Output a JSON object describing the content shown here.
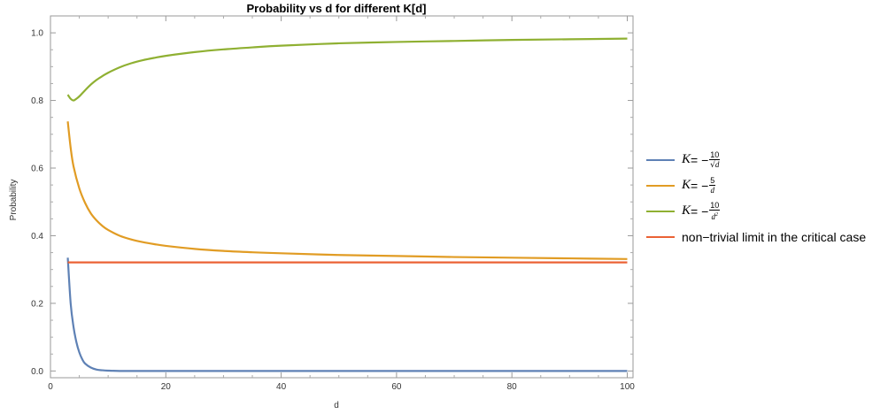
{
  "chart_data": {
    "type": "line",
    "title": "Probability vs d for different K[d]",
    "xlabel": "d",
    "ylabel": "Probability",
    "xlim": [
      0,
      101
    ],
    "ylim": [
      -0.02,
      1.05
    ],
    "xticks": [
      0,
      20,
      40,
      60,
      80,
      100
    ],
    "xtick_labels": [
      "0",
      "20",
      "40",
      "60",
      "80",
      "100"
    ],
    "yticks": [
      0.0,
      0.2,
      0.4,
      0.6,
      0.8,
      1.0
    ],
    "ytick_labels": [
      "0.0",
      "0.2",
      "0.4",
      "0.6",
      "0.8",
      "1.0"
    ],
    "grid": false,
    "legend_position": "right",
    "series": [
      {
        "name": "K = −10/√d",
        "color": "#5e81b5",
        "x": [
          3,
          3.5,
          4,
          4.5,
          5,
          5.5,
          6,
          7,
          8,
          9,
          10,
          12,
          15,
          20,
          30,
          40,
          50,
          60,
          70,
          80,
          90,
          100
        ],
        "y": [
          0.335,
          0.2,
          0.13,
          0.085,
          0.055,
          0.035,
          0.022,
          0.01,
          0.004,
          0.002,
          0.001,
          0.0,
          0.0,
          0.0,
          0.0,
          0.0,
          0.0,
          0.0,
          0.0,
          0.0,
          0.0,
          0.0
        ]
      },
      {
        "name": "K = −5/d",
        "color": "#e19c24",
        "x": [
          3,
          3.5,
          4,
          5,
          6,
          7,
          8,
          9,
          10,
          12,
          14,
          16,
          18,
          20,
          25,
          30,
          35,
          40,
          50,
          60,
          70,
          80,
          90,
          100
        ],
        "y": [
          0.738,
          0.66,
          0.605,
          0.54,
          0.497,
          0.466,
          0.445,
          0.429,
          0.417,
          0.4,
          0.389,
          0.381,
          0.375,
          0.37,
          0.361,
          0.355,
          0.351,
          0.348,
          0.343,
          0.34,
          0.337,
          0.335,
          0.333,
          0.331
        ]
      },
      {
        "name": "K = −10/d²",
        "color": "#8fb032",
        "x": [
          3,
          3.5,
          4,
          4.5,
          5,
          6,
          7,
          8,
          9,
          10,
          12,
          14,
          16,
          18,
          20,
          25,
          30,
          35,
          40,
          50,
          60,
          70,
          80,
          90,
          100
        ],
        "y": [
          0.817,
          0.805,
          0.8,
          0.805,
          0.812,
          0.83,
          0.847,
          0.861,
          0.872,
          0.882,
          0.898,
          0.91,
          0.919,
          0.926,
          0.932,
          0.943,
          0.951,
          0.957,
          0.962,
          0.969,
          0.973,
          0.976,
          0.979,
          0.981,
          0.983
        ]
      },
      {
        "name": "non−trivial limit in the critical case",
        "color": "#eb6235",
        "x": [
          3,
          100
        ],
        "y": [
          0.321,
          0.321
        ]
      }
    ]
  },
  "legend": {
    "items": [
      {
        "k": "K",
        "eq": " = −",
        "num": "10",
        "den_root": "d",
        "type": "sqrt",
        "color": "#5e81b5"
      },
      {
        "k": "K",
        "eq": " = −",
        "num": "5",
        "den": "d",
        "type": "plain",
        "color": "#e19c24"
      },
      {
        "k": "K",
        "eq": " = −",
        "num": "10",
        "den": "d",
        "den_sup": "2",
        "type": "sup",
        "color": "#8fb032"
      },
      {
        "text": "non−trivial limit in the critical case",
        "type": "text",
        "color": "#eb6235"
      }
    ]
  }
}
